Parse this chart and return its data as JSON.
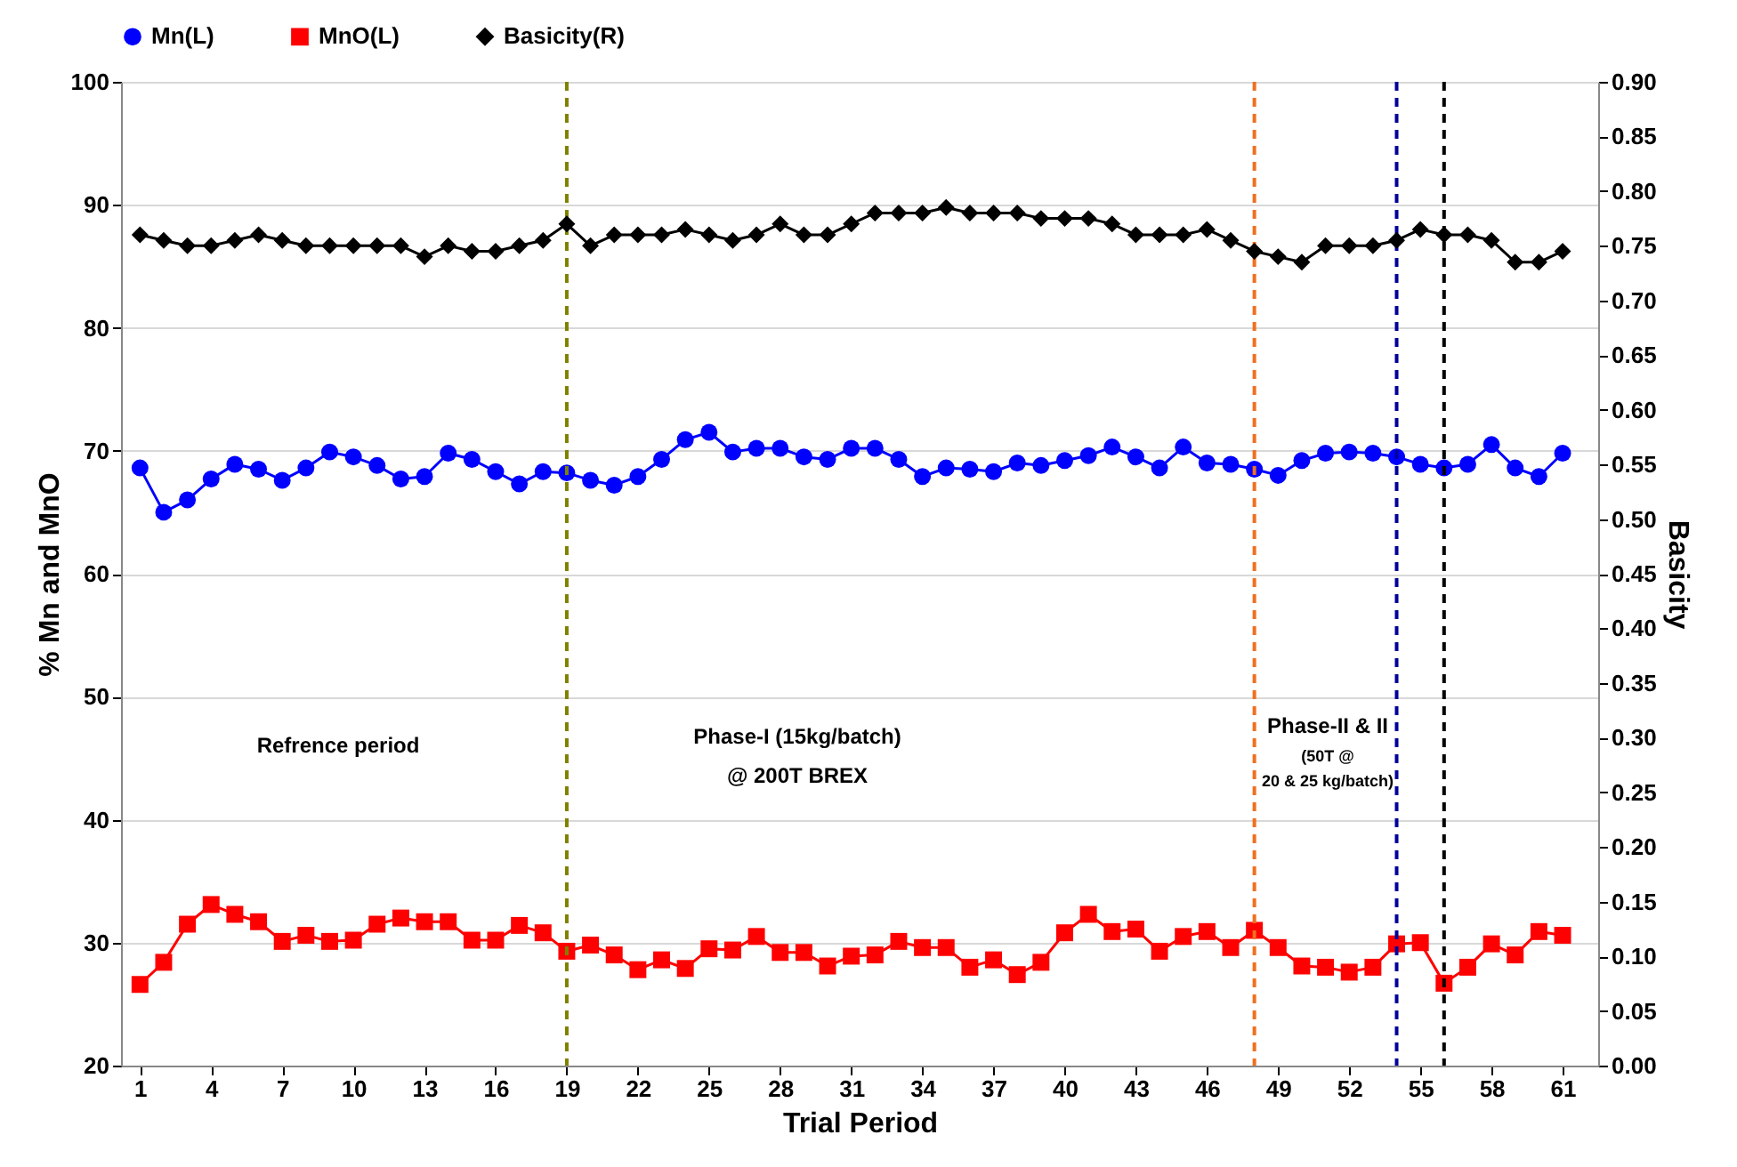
{
  "chart_data": {
    "type": "line",
    "xlabel": "Trial Period",
    "ylabel": "% Mn and MnO",
    "y2label": "Basicity",
    "x": [
      1,
      2,
      3,
      4,
      5,
      6,
      7,
      8,
      9,
      10,
      11,
      12,
      13,
      14,
      15,
      16,
      17,
      18,
      19,
      20,
      21,
      22,
      23,
      24,
      25,
      26,
      27,
      28,
      29,
      30,
      31,
      32,
      33,
      34,
      35,
      36,
      37,
      38,
      39,
      40,
      41,
      42,
      43,
      44,
      45,
      46,
      47,
      48,
      49,
      50,
      51,
      52,
      53,
      54,
      55,
      56,
      57,
      58,
      59,
      60,
      61
    ],
    "xlim": [
      0.2,
      62.5
    ],
    "xticks": [
      1,
      4,
      7,
      10,
      13,
      16,
      19,
      22,
      25,
      28,
      31,
      34,
      37,
      40,
      43,
      46,
      49,
      52,
      55,
      58,
      61
    ],
    "ylim": [
      20,
      100
    ],
    "yticks": [
      20,
      30,
      40,
      50,
      60,
      70,
      80,
      90,
      100
    ],
    "y2lim": [
      0,
      0.9
    ],
    "y2ticks": [
      {
        "value": 0,
        "label": "0.00"
      },
      {
        "value": 0.05,
        "label": "0.05"
      },
      {
        "value": 0.1,
        "label": "0.10"
      },
      {
        "value": 0.15,
        "label": "0.15"
      },
      {
        "value": 0.2,
        "label": "0.20"
      },
      {
        "value": 0.25,
        "label": "0.25"
      },
      {
        "value": 0.3,
        "label": "0.30"
      },
      {
        "value": 0.35,
        "label": "0.35"
      },
      {
        "value": 0.4,
        "label": "0.40"
      },
      {
        "value": 0.45,
        "label": "0.45"
      },
      {
        "value": 0.5,
        "label": "0.50"
      },
      {
        "value": 0.55,
        "label": "0.55"
      },
      {
        "value": 0.6,
        "label": "0.60"
      },
      {
        "value": 0.65,
        "label": "0.65"
      },
      {
        "value": 0.7,
        "label": "0.70"
      },
      {
        "value": 0.75,
        "label": "0.75"
      },
      {
        "value": 0.8,
        "label": "0.80"
      },
      {
        "value": 0.85,
        "label": "0.85"
      },
      {
        "value": 0.9,
        "label": "0.90"
      }
    ],
    "grid": "y",
    "legend": "top",
    "series": [
      {
        "name": "Mn(L)",
        "color": "#0000ff",
        "marker": "circle",
        "values": [
          68.6,
          65.0,
          66.0,
          67.7,
          68.9,
          68.5,
          67.6,
          68.6,
          69.9,
          69.5,
          68.8,
          67.7,
          67.9,
          69.8,
          69.3,
          68.3,
          67.3,
          68.3,
          68.2,
          67.6,
          67.2,
          67.9,
          69.3,
          70.9,
          71.5,
          69.9,
          70.2,
          70.2,
          69.5,
          69.3,
          70.2,
          70.2,
          69.3,
          67.9,
          68.6,
          68.5,
          68.3,
          69.0,
          68.8,
          69.2,
          69.6,
          70.3,
          69.5,
          68.6,
          70.3,
          69.0,
          68.9,
          68.5,
          68.0,
          69.2,
          69.8,
          69.9,
          69.8,
          69.5,
          68.9,
          68.6,
          68.9,
          70.5,
          68.6,
          67.9,
          69.8
        ]
      },
      {
        "name": "MnO(L)",
        "color": "#ff0000",
        "marker": "square",
        "values": [
          26.6,
          28.4,
          31.5,
          33.1,
          32.3,
          31.7,
          30.1,
          30.6,
          30.1,
          30.2,
          31.5,
          32.0,
          31.7,
          31.7,
          30.2,
          30.2,
          31.4,
          30.8,
          29.3,
          29.8,
          29.0,
          27.8,
          28.6,
          27.9,
          29.5,
          29.4,
          30.5,
          29.2,
          29.2,
          28.1,
          28.9,
          29.0,
          30.1,
          29.6,
          29.6,
          28.0,
          28.6,
          27.4,
          28.4,
          30.8,
          32.3,
          30.9,
          31.1,
          29.3,
          30.5,
          30.9,
          29.6,
          31.0,
          29.6,
          28.1,
          28.0,
          27.6,
          28.0,
          29.9,
          30.0,
          26.7,
          28.0,
          29.9,
          29.0,
          30.9,
          30.6
        ]
      },
      {
        "name": "Basicity(R)",
        "color": "#000000",
        "marker": "diamond",
        "axis": "y2",
        "values": [
          0.76,
          0.755,
          0.75,
          0.75,
          0.755,
          0.76,
          0.755,
          0.75,
          0.75,
          0.75,
          0.75,
          0.75,
          0.74,
          0.75,
          0.745,
          0.745,
          0.75,
          0.755,
          0.77,
          0.75,
          0.76,
          0.76,
          0.76,
          0.765,
          0.76,
          0.755,
          0.76,
          0.77,
          0.76,
          0.76,
          0.77,
          0.78,
          0.78,
          0.78,
          0.785,
          0.78,
          0.78,
          0.78,
          0.775,
          0.775,
          0.775,
          0.77,
          0.76,
          0.76,
          0.76,
          0.765,
          0.755,
          0.745,
          0.74,
          0.735,
          0.75,
          0.75,
          0.75,
          0.755,
          0.765,
          0.76,
          0.76,
          0.755,
          0.735,
          0.735,
          0.745
        ]
      }
    ],
    "ref_lines": [
      {
        "axis": "x",
        "value": 19,
        "color": "#808000",
        "line_style": "dashed"
      },
      {
        "axis": "x",
        "value": 48,
        "color": "#f07020",
        "line_style": "dashed"
      },
      {
        "axis": "x",
        "value": 54,
        "color": "#000099",
        "line_style": "dashed"
      },
      {
        "axis": "x",
        "value": 56,
        "color": "#000000",
        "line_style": "dashed"
      }
    ],
    "annotations": [
      "Refrence period",
      "Phase-I (15kg/batch)",
      "@ 200T BREX",
      "Phase-II & II",
      "(50T @",
      "20 & 25 kg/batch)"
    ]
  }
}
